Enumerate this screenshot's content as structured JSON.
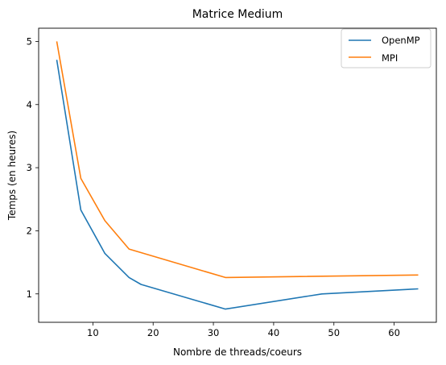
{
  "chart_data": {
    "type": "line",
    "title": "Matrice Medium",
    "xlabel": "Nombre de threads/coeurs",
    "ylabel": "Temps (en heures)",
    "xlim": [
      1,
      67
    ],
    "ylim": [
      0.55,
      5.21
    ],
    "xticks": [
      10,
      20,
      30,
      40,
      50,
      60
    ],
    "yticks": [
      1,
      2,
      3,
      4,
      5
    ],
    "grid": false,
    "legend_position": "top-right",
    "series": [
      {
        "name": "OpenMP",
        "color": "#1f77b4",
        "x": [
          4,
          8,
          12,
          16,
          18,
          32,
          48,
          64
        ],
        "y": [
          4.71,
          2.33,
          1.64,
          1.26,
          1.15,
          0.76,
          1.0,
          1.08
        ]
      },
      {
        "name": "MPI",
        "color": "#ff7f0e",
        "x": [
          4,
          8,
          12,
          16,
          32,
          64
        ],
        "y": [
          5.0,
          2.83,
          2.16,
          1.71,
          1.26,
          1.3
        ]
      }
    ]
  }
}
